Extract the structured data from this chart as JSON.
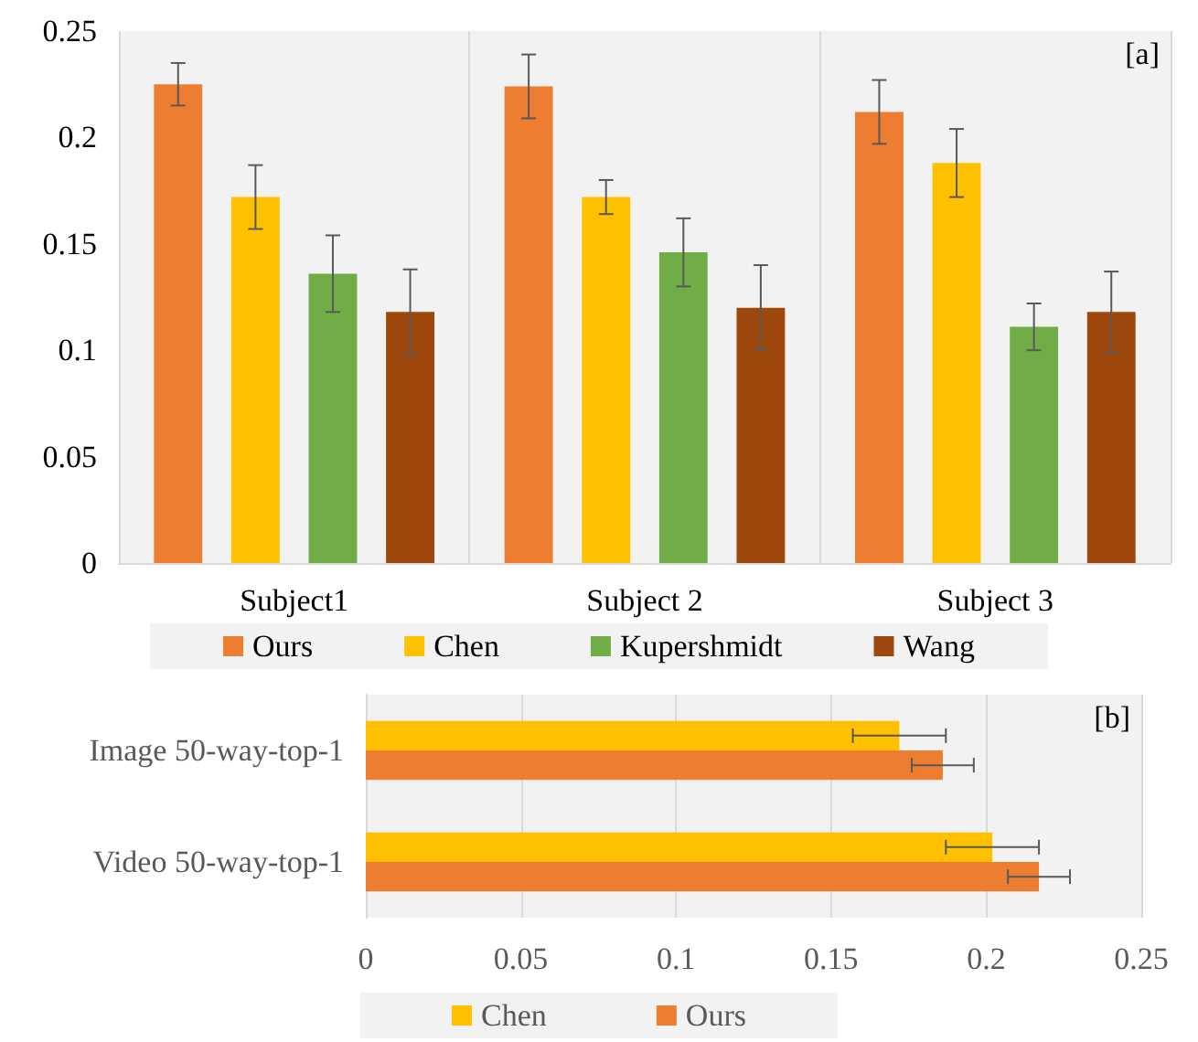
{
  "chart_data": [
    {
      "type": "bar",
      "categories": [
        "Subject1",
        "Subject 2",
        "Subject 3"
      ],
      "series": [
        {
          "name": "Ours",
          "color": "#ed7d31",
          "values": [
            0.225,
            0.224,
            0.212
          ],
          "errors": [
            0.01,
            0.015,
            0.015
          ]
        },
        {
          "name": "Chen",
          "color": "#ffc000",
          "values": [
            0.172,
            0.172,
            0.188
          ],
          "errors": [
            0.015,
            0.008,
            0.016
          ]
        },
        {
          "name": "Kupershmidt",
          "color": "#70ad47",
          "values": [
            0.136,
            0.146,
            0.111
          ],
          "errors": [
            0.018,
            0.016,
            0.011
          ]
        },
        {
          "name": "Wang",
          "color": "#9e480e",
          "values": [
            0.118,
            0.12,
            0.118
          ],
          "errors": [
            0.02,
            0.02,
            0.019
          ]
        }
      ],
      "ylim": [
        0,
        0.25
      ],
      "yticks": [
        0,
        0.05,
        0.1,
        0.15,
        0.2,
        0.25
      ],
      "grid": "x",
      "legend": "bottom",
      "annotations": [
        "[a]"
      ]
    },
    {
      "type": "bar",
      "orientation": "horizontal",
      "categories": [
        "Image 50-way-top-1",
        "Video 50-way-top-1"
      ],
      "series": [
        {
          "name": "Chen",
          "color": "#ffc000",
          "values": [
            0.172,
            0.202
          ],
          "errors": [
            0.015,
            0.015
          ]
        },
        {
          "name": "Ours",
          "color": "#ed7d31",
          "values": [
            0.186,
            0.217
          ],
          "errors": [
            0.01,
            0.01
          ]
        }
      ],
      "xlim": [
        0,
        0.25
      ],
      "xticks": [
        0,
        0.05,
        0.1,
        0.15,
        0.2,
        0.25
      ],
      "grid": "x",
      "legend": "bottom",
      "annotations": [
        "[b]"
      ]
    }
  ]
}
